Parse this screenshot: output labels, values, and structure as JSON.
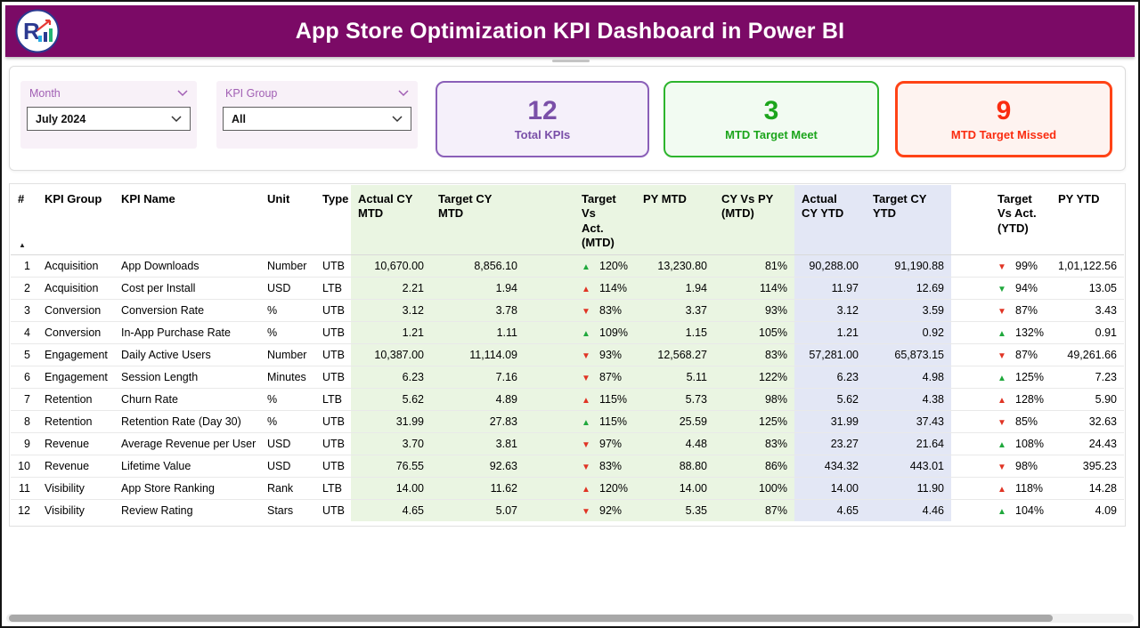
{
  "header": {
    "title": "App Store Optimization KPI Dashboard in Power BI",
    "logo_text": "R"
  },
  "more_options": {
    "label": "···"
  },
  "filters": {
    "month": {
      "label": "Month",
      "value": "July 2024"
    },
    "kpi_group": {
      "label": "KPI Group",
      "value": "All"
    }
  },
  "cards": [
    {
      "value": "12",
      "label": "Total KPIs",
      "accent": "#7A4FA8"
    },
    {
      "value": "3",
      "label": "MTD Target Meet",
      "accent": "#1CA51C"
    },
    {
      "value": "9",
      "label": "MTD Target Missed",
      "accent": "#FA2C10"
    }
  ],
  "colors": {
    "banner": "#7B0A66",
    "mtd_block_bg": "#EAF5E2",
    "ytd_block_bg": "#E3E7F5",
    "trend_green": "#1FA83C",
    "trend_red": "#E03424"
  },
  "chart_data": {
    "type": "table",
    "title": "App Store Optimization KPI Dashboard in Power BI",
    "filters": {
      "Month": "July 2024",
      "KPI Group": "All"
    },
    "kpi_cards": [
      {
        "label": "Total KPIs",
        "value": 12
      },
      {
        "label": "MTD Target Meet",
        "value": 3
      },
      {
        "label": "MTD Target Missed",
        "value": 9
      }
    ],
    "columns": [
      {
        "key": "n",
        "label": "#",
        "align": "right",
        "sorted": true
      },
      {
        "key": "group",
        "label": "KPI Group",
        "align": "left"
      },
      {
        "key": "name",
        "label": "KPI Name",
        "align": "left"
      },
      {
        "key": "unit",
        "label": "Unit",
        "align": "left"
      },
      {
        "key": "type",
        "label": "Type",
        "align": "left"
      },
      {
        "key": "actual_mtd",
        "label": "Actual CY\nMTD",
        "align": "right",
        "tint": "green"
      },
      {
        "key": "target_mtd",
        "label": "Target CY\nMTD",
        "align": "right",
        "tint": "green"
      },
      {
        "key": "tva_mtd",
        "label": "Target Vs\nAct.\n(MTD)",
        "align": "left",
        "tint": "green",
        "trend": true
      },
      {
        "key": "py_mtd",
        "label": "PY MTD",
        "align": "right",
        "tint": "green"
      },
      {
        "key": "cy_vs_py_mtd",
        "label": "CY Vs PY\n(MTD)",
        "align": "right",
        "tint": "green"
      },
      {
        "key": "actual_ytd",
        "label": "Actual\nCY YTD",
        "align": "right",
        "tint": "blue"
      },
      {
        "key": "target_ytd",
        "label": "Target CY\nYTD",
        "align": "right",
        "tint": "blue"
      },
      {
        "key": "tva_ytd",
        "label": "Target\nVs Act.\n(YTD)",
        "align": "left",
        "trend": true
      },
      {
        "key": "py_ytd",
        "label": "PY YTD",
        "align": "right"
      }
    ],
    "rows": [
      {
        "n": "1",
        "group": "Acquisition",
        "name": "App Downloads",
        "unit": "Number",
        "type": "UTB",
        "actual_mtd": "10,670.00",
        "target_mtd": "8,856.10",
        "tva_mtd": {
          "dir": "up",
          "color": "green",
          "value": "120%"
        },
        "py_mtd": "13,230.80",
        "cy_vs_py_mtd": "81%",
        "actual_ytd": "90,288.00",
        "target_ytd": "91,190.88",
        "tva_ytd": {
          "dir": "down",
          "color": "red",
          "value": "99%"
        },
        "py_ytd": "1,01,122.56"
      },
      {
        "n": "2",
        "group": "Acquisition",
        "name": "Cost per Install",
        "unit": "USD",
        "type": "LTB",
        "actual_mtd": "2.21",
        "target_mtd": "1.94",
        "tva_mtd": {
          "dir": "up",
          "color": "red",
          "value": "114%"
        },
        "py_mtd": "1.94",
        "cy_vs_py_mtd": "114%",
        "actual_ytd": "11.97",
        "target_ytd": "12.69",
        "tva_ytd": {
          "dir": "down",
          "color": "green",
          "value": "94%"
        },
        "py_ytd": "13.05"
      },
      {
        "n": "3",
        "group": "Conversion",
        "name": "Conversion Rate",
        "unit": "%",
        "type": "UTB",
        "actual_mtd": "3.12",
        "target_mtd": "3.78",
        "tva_mtd": {
          "dir": "down",
          "color": "red",
          "value": "83%"
        },
        "py_mtd": "3.37",
        "cy_vs_py_mtd": "93%",
        "actual_ytd": "3.12",
        "target_ytd": "3.59",
        "tva_ytd": {
          "dir": "down",
          "color": "red",
          "value": "87%"
        },
        "py_ytd": "3.43"
      },
      {
        "n": "4",
        "group": "Conversion",
        "name": "In-App Purchase Rate",
        "unit": "%",
        "type": "UTB",
        "actual_mtd": "1.21",
        "target_mtd": "1.11",
        "tva_mtd": {
          "dir": "up",
          "color": "green",
          "value": "109%"
        },
        "py_mtd": "1.15",
        "cy_vs_py_mtd": "105%",
        "actual_ytd": "1.21",
        "target_ytd": "0.92",
        "tva_ytd": {
          "dir": "up",
          "color": "green",
          "value": "132%"
        },
        "py_ytd": "0.91"
      },
      {
        "n": "5",
        "group": "Engagement",
        "name": "Daily Active Users",
        "unit": "Number",
        "type": "UTB",
        "actual_mtd": "10,387.00",
        "target_mtd": "11,114.09",
        "tva_mtd": {
          "dir": "down",
          "color": "red",
          "value": "93%"
        },
        "py_mtd": "12,568.27",
        "cy_vs_py_mtd": "83%",
        "actual_ytd": "57,281.00",
        "target_ytd": "65,873.15",
        "tva_ytd": {
          "dir": "down",
          "color": "red",
          "value": "87%"
        },
        "py_ytd": "49,261.66"
      },
      {
        "n": "6",
        "group": "Engagement",
        "name": "Session Length",
        "unit": "Minutes",
        "type": "UTB",
        "actual_mtd": "6.23",
        "target_mtd": "7.16",
        "tva_mtd": {
          "dir": "down",
          "color": "red",
          "value": "87%"
        },
        "py_mtd": "5.11",
        "cy_vs_py_mtd": "122%",
        "actual_ytd": "6.23",
        "target_ytd": "4.98",
        "tva_ytd": {
          "dir": "up",
          "color": "green",
          "value": "125%"
        },
        "py_ytd": "7.23"
      },
      {
        "n": "7",
        "group": "Retention",
        "name": "Churn Rate",
        "unit": "%",
        "type": "LTB",
        "actual_mtd": "5.62",
        "target_mtd": "4.89",
        "tva_mtd": {
          "dir": "up",
          "color": "red",
          "value": "115%"
        },
        "py_mtd": "5.73",
        "cy_vs_py_mtd": "98%",
        "actual_ytd": "5.62",
        "target_ytd": "4.38",
        "tva_ytd": {
          "dir": "up",
          "color": "red",
          "value": "128%"
        },
        "py_ytd": "5.90"
      },
      {
        "n": "8",
        "group": "Retention",
        "name": "Retention Rate (Day 30)",
        "unit": "%",
        "type": "UTB",
        "actual_mtd": "31.99",
        "target_mtd": "27.83",
        "tva_mtd": {
          "dir": "up",
          "color": "green",
          "value": "115%"
        },
        "py_mtd": "25.59",
        "cy_vs_py_mtd": "125%",
        "actual_ytd": "31.99",
        "target_ytd": "37.43",
        "tva_ytd": {
          "dir": "down",
          "color": "red",
          "value": "85%"
        },
        "py_ytd": "32.63"
      },
      {
        "n": "9",
        "group": "Revenue",
        "name": "Average Revenue per User",
        "unit": "USD",
        "type": "UTB",
        "actual_mtd": "3.70",
        "target_mtd": "3.81",
        "tva_mtd": {
          "dir": "down",
          "color": "red",
          "value": "97%"
        },
        "py_mtd": "4.48",
        "cy_vs_py_mtd": "83%",
        "actual_ytd": "23.27",
        "target_ytd": "21.64",
        "tva_ytd": {
          "dir": "up",
          "color": "green",
          "value": "108%"
        },
        "py_ytd": "24.43"
      },
      {
        "n": "10",
        "group": "Revenue",
        "name": "Lifetime Value",
        "unit": "USD",
        "type": "UTB",
        "actual_mtd": "76.55",
        "target_mtd": "92.63",
        "tva_mtd": {
          "dir": "down",
          "color": "red",
          "value": "83%"
        },
        "py_mtd": "88.80",
        "cy_vs_py_mtd": "86%",
        "actual_ytd": "434.32",
        "target_ytd": "443.01",
        "tva_ytd": {
          "dir": "down",
          "color": "red",
          "value": "98%"
        },
        "py_ytd": "395.23"
      },
      {
        "n": "11",
        "group": "Visibility",
        "name": "App Store Ranking",
        "unit": "Rank",
        "type": "LTB",
        "actual_mtd": "14.00",
        "target_mtd": "11.62",
        "tva_mtd": {
          "dir": "up",
          "color": "red",
          "value": "120%"
        },
        "py_mtd": "14.00",
        "cy_vs_py_mtd": "100%",
        "actual_ytd": "14.00",
        "target_ytd": "11.90",
        "tva_ytd": {
          "dir": "up",
          "color": "red",
          "value": "118%"
        },
        "py_ytd": "14.28"
      },
      {
        "n": "12",
        "group": "Visibility",
        "name": "Review Rating",
        "unit": "Stars",
        "type": "UTB",
        "actual_mtd": "4.65",
        "target_mtd": "5.07",
        "tva_mtd": {
          "dir": "down",
          "color": "red",
          "value": "92%"
        },
        "py_mtd": "5.35",
        "cy_vs_py_mtd": "87%",
        "actual_ytd": "4.65",
        "target_ytd": "4.46",
        "tva_ytd": {
          "dir": "up",
          "color": "green",
          "value": "104%"
        },
        "py_ytd": "4.09"
      }
    ]
  }
}
